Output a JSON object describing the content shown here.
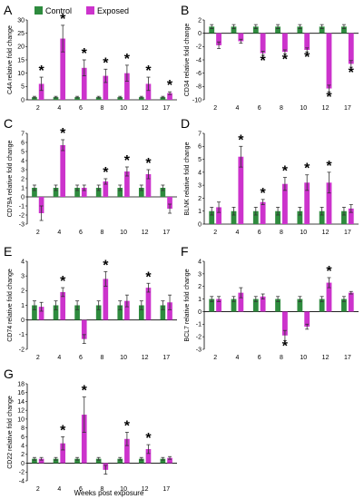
{
  "legend": [
    {
      "name": "Control",
      "color": "#2e8b3e"
    },
    {
      "name": "Exposed",
      "color": "#cc33cc"
    }
  ],
  "x_axis_label": "Weeks post exposure",
  "colors": {
    "control": "#2e8b3e",
    "exposed": "#cc33cc",
    "exposed_light": "#9966cc",
    "axis": "#000000",
    "error": "#333333"
  },
  "chart_data": [
    {
      "type": "bar",
      "panel": "A",
      "ylabel": "C4A relative fold change",
      "categories": [
        "2",
        "4",
        "6",
        "8",
        "10",
        "12",
        "17"
      ],
      "ylim": [
        0,
        30
      ],
      "yticks": [
        0,
        5,
        10,
        15,
        20,
        25,
        30
      ],
      "series": [
        {
          "name": "Control",
          "values": [
            1,
            1,
            1,
            1,
            1,
            1,
            1
          ],
          "errors": [
            0.3,
            0.3,
            0.3,
            0.3,
            0.3,
            0.3,
            0.3
          ]
        },
        {
          "name": "Exposed",
          "values": [
            6,
            23,
            12,
            9,
            10,
            6,
            2.5
          ],
          "errors": [
            2.5,
            5,
            3,
            2.5,
            3,
            2.5,
            0.5
          ]
        }
      ],
      "significant": [
        true,
        true,
        true,
        true,
        true,
        true,
        true
      ]
    },
    {
      "type": "bar",
      "panel": "B",
      "ylabel": "CD34 relative fold change",
      "categories": [
        "2",
        "4",
        "6",
        "8",
        "10",
        "12",
        "17"
      ],
      "ylim": [
        -10,
        2
      ],
      "yticks": [
        -10,
        -8,
        -6,
        -4,
        -2,
        0,
        2
      ],
      "series": [
        {
          "name": "Control",
          "values": [
            1,
            1,
            1,
            1,
            1,
            1,
            1
          ],
          "errors": [
            0.3,
            0.3,
            0.3,
            0.3,
            0.3,
            0.3,
            0.3
          ]
        },
        {
          "name": "Exposed",
          "values": [
            -1.8,
            -1.2,
            -3,
            -2.8,
            -2.5,
            -8.3,
            -4.6
          ],
          "errors": [
            0.5,
            0.3,
            0.3,
            0.3,
            0.3,
            0.5,
            0.5
          ]
        }
      ],
      "significant": [
        false,
        false,
        true,
        true,
        true,
        true,
        true
      ]
    },
    {
      "type": "bar",
      "panel": "C",
      "ylabel": "CD79A relative fold change",
      "categories": [
        "2",
        "4",
        "6",
        "8",
        "10",
        "12",
        "17"
      ],
      "ylim": [
        -3,
        7
      ],
      "yticks": [
        -3,
        -2,
        -1,
        0,
        1,
        2,
        3,
        4,
        5,
        6,
        7
      ],
      "series": [
        {
          "name": "Control",
          "values": [
            1,
            1,
            1,
            1,
            1,
            1,
            1
          ],
          "errors": [
            0.3,
            0.3,
            0.3,
            0.3,
            0.3,
            0.3,
            0.3
          ]
        },
        {
          "name": "Exposed",
          "values": [
            -1.8,
            5.7,
            1,
            1.7,
            2.8,
            2.5,
            -1.3
          ],
          "errors": [
            0.8,
            0.6,
            0.3,
            0.3,
            0.5,
            0.5,
            0.5
          ]
        }
      ],
      "significant": [
        false,
        true,
        false,
        true,
        true,
        true,
        false
      ]
    },
    {
      "type": "bar",
      "panel": "D",
      "ylabel": "BLNK relative fold change",
      "categories": [
        "2",
        "4",
        "6",
        "8",
        "10",
        "12",
        "17"
      ],
      "ylim": [
        0,
        7
      ],
      "yticks": [
        0,
        1,
        2,
        3,
        4,
        5,
        6,
        7
      ],
      "series": [
        {
          "name": "Control",
          "values": [
            1,
            1,
            1,
            1,
            1,
            1,
            1
          ],
          "errors": [
            0.3,
            0.3,
            0.3,
            0.3,
            0.3,
            0.3,
            0.3
          ]
        },
        {
          "name": "Exposed",
          "values": [
            1.3,
            5.2,
            1.7,
            3.1,
            3.2,
            3.2,
            1.2
          ],
          "errors": [
            0.4,
            0.8,
            0.2,
            0.5,
            0.6,
            0.8,
            0.3
          ]
        }
      ],
      "significant": [
        false,
        true,
        true,
        true,
        true,
        true,
        false
      ]
    },
    {
      "type": "bar",
      "panel": "E",
      "ylabel": "CD74 relative fold change",
      "categories": [
        "2",
        "4",
        "6",
        "8",
        "10",
        "12",
        "17"
      ],
      "ylim": [
        -2,
        4
      ],
      "yticks": [
        -2,
        -1,
        0,
        1,
        2,
        3,
        4
      ],
      "series": [
        {
          "name": "Control",
          "values": [
            1,
            1,
            1,
            1,
            1,
            1,
            1
          ],
          "errors": [
            0.3,
            0.3,
            0.3,
            0.3,
            0.3,
            0.3,
            0.3
          ]
        },
        {
          "name": "Exposed",
          "values": [
            0.9,
            1.9,
            -1.3,
            2.8,
            1.3,
            2.2,
            1.2
          ],
          "errors": [
            0.3,
            0.3,
            0.3,
            0.5,
            0.4,
            0.3,
            0.5
          ]
        }
      ],
      "significant": [
        false,
        true,
        false,
        true,
        false,
        true,
        false
      ]
    },
    {
      "type": "bar",
      "panel": "F",
      "ylabel": "BCL7 relative fold change",
      "categories": [
        "2",
        "4",
        "6",
        "8",
        "10",
        "12",
        "17"
      ],
      "ylim": [
        -3,
        4
      ],
      "yticks": [
        -3,
        -2,
        -1,
        0,
        1,
        2,
        3,
        4
      ],
      "series": [
        {
          "name": "Control",
          "values": [
            1,
            1,
            1,
            1,
            1,
            1,
            1
          ],
          "errors": [
            0.2,
            0.2,
            0.2,
            0.2,
            0.2,
            0.2,
            0.2
          ]
        },
        {
          "name": "Exposed",
          "values": [
            1,
            1.5,
            1.2,
            -1.9,
            -1.2,
            2.3,
            1.5
          ],
          "errors": [
            0.2,
            0.4,
            0.2,
            0.4,
            0.2,
            0.4,
            0.1
          ]
        }
      ],
      "significant": [
        false,
        false,
        false,
        true,
        false,
        true,
        false
      ]
    },
    {
      "type": "bar",
      "panel": "G",
      "ylabel": "CD22 relative fold change",
      "categories": [
        "2",
        "4",
        "6",
        "8",
        "10",
        "12",
        "17"
      ],
      "ylim": [
        -4,
        18
      ],
      "yticks": [
        -4,
        -2,
        0,
        2,
        4,
        6,
        8,
        10,
        12,
        14,
        16,
        18
      ],
      "series": [
        {
          "name": "Control",
          "values": [
            1,
            1,
            1,
            1,
            1,
            1,
            1
          ],
          "errors": [
            0.3,
            0.3,
            0.3,
            0.3,
            0.3,
            0.3,
            0.3
          ]
        },
        {
          "name": "Exposed",
          "values": [
            1,
            4.5,
            11,
            -1.5,
            5.5,
            3.2,
            1.2
          ],
          "errors": [
            0.3,
            1.5,
            4,
            1,
            1.5,
            1,
            0.3
          ]
        }
      ],
      "significant": [
        false,
        true,
        true,
        false,
        true,
        true,
        false
      ]
    }
  ]
}
